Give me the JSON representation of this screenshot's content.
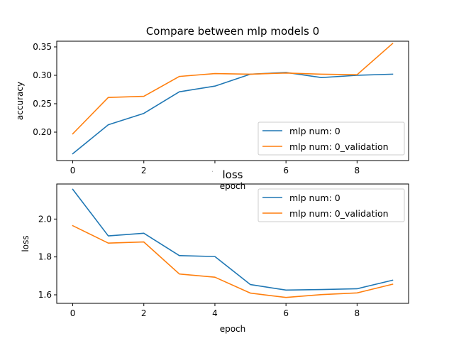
{
  "colors": {
    "train": "#1f77b4",
    "validation": "#ff7f0e"
  },
  "chart_data": [
    {
      "type": "line",
      "title": "Compare between mlp models 0",
      "xlabel": "epoch",
      "ylabel": "accuracy",
      "x": [
        0,
        1,
        2,
        3,
        4,
        5,
        6,
        7,
        8,
        9
      ],
      "xlim": [
        -0.45,
        9.45
      ],
      "ylim": [
        0.15,
        0.36
      ],
      "xticks": [
        0,
        2,
        4,
        6,
        8
      ],
      "yticks": [
        0.2,
        0.25,
        0.3,
        0.35
      ],
      "ytick_labels": [
        "0.20",
        "0.25",
        "0.30",
        "0.35"
      ],
      "legend_position": "lower-right",
      "series": [
        {
          "name": "mlp num: 0",
          "color": "#1f77b4",
          "values": [
            0.162,
            0.213,
            0.233,
            0.271,
            0.281,
            0.302,
            0.305,
            0.296,
            0.3,
            0.302
          ]
        },
        {
          "name": "mlp num: 0_validation",
          "color": "#ff7f0e",
          "values": [
            0.197,
            0.261,
            0.263,
            0.298,
            0.303,
            0.302,
            0.304,
            0.302,
            0.301,
            0.356
          ]
        }
      ]
    },
    {
      "type": "line",
      "title": "loss",
      "xlabel": "epoch",
      "ylabel": "loss",
      "x": [
        0,
        1,
        2,
        3,
        4,
        5,
        6,
        7,
        8,
        9
      ],
      "xlim": [
        -0.45,
        9.45
      ],
      "ylim": [
        1.555,
        2.185
      ],
      "xticks": [
        0,
        2,
        4,
        6,
        8
      ],
      "yticks": [
        1.6,
        1.8,
        2.0
      ],
      "ytick_labels": [
        "1.6",
        "1.8",
        "2.0"
      ],
      "legend_position": "upper-right",
      "series": [
        {
          "name": "mlp num: 0",
          "color": "#1f77b4",
          "values": [
            2.157,
            1.911,
            1.925,
            1.807,
            1.802,
            1.654,
            1.625,
            1.628,
            1.632,
            1.677
          ]
        },
        {
          "name": "mlp num: 0_validation",
          "color": "#ff7f0e",
          "values": [
            1.965,
            1.873,
            1.879,
            1.71,
            1.693,
            1.609,
            1.586,
            1.601,
            1.61,
            1.656
          ]
        }
      ]
    }
  ]
}
